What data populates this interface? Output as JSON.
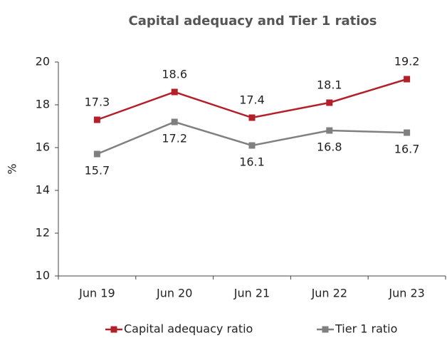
{
  "chart_data": {
    "type": "line",
    "title": "Capital adequacy and Tier 1 ratios",
    "y_label": "%",
    "categories": [
      "Jun 19",
      "Jun 20",
      "Jun 21",
      "Jun 22",
      "Jun 23"
    ],
    "series": [
      {
        "name": "Capital adequacy ratio",
        "color": "#b3202a",
        "values": [
          17.3,
          18.6,
          17.4,
          18.1,
          19.2
        ]
      },
      {
        "name": "Tier 1 ratio",
        "color": "#808080",
        "values": [
          15.7,
          17.2,
          16.1,
          16.8,
          16.7
        ]
      }
    ],
    "ylim": [
      10,
      20
    ],
    "yticks": [
      10,
      12,
      14,
      16,
      18,
      20
    ],
    "grid": false,
    "legend": "bottom"
  }
}
